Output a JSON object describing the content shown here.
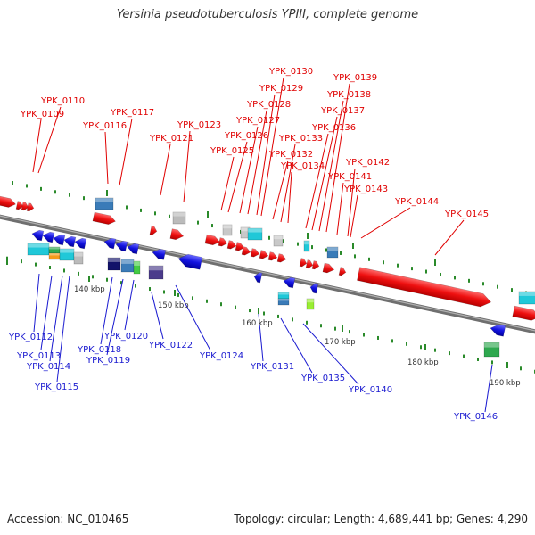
{
  "title": "Yersinia pseudotuberculosis YPIII, complete genome",
  "footer": {
    "accession": "Accession: NC_010465",
    "topology": "Topology: circular; Length: 4,689,441 bp; Genes: 4,290"
  },
  "colors": {
    "forward_genes": "#e00000",
    "reverse_genes": "#1a1ad0",
    "backbone": "#7a7a7a",
    "tick": "#2a8a2a"
  },
  "kbp_markers": [
    "140 kbp",
    "150 kbp",
    "160 kbp",
    "170 kbp",
    "180 kbp",
    "190 kbp"
  ],
  "forward_labels": [
    "YPK_0109",
    "YPK_0110",
    "YPK_0116",
    "YPK_0117",
    "YPK_0121",
    "YPK_0123",
    "YPK_0125",
    "YPK_0126",
    "YPK_0127",
    "YPK_0128",
    "YPK_0129",
    "YPK_0130",
    "YPK_0132",
    "YPK_0133",
    "YPK_0134",
    "YPK_0136",
    "YPK_0137",
    "YPK_0138",
    "YPK_0139",
    "YPK_0141",
    "YPK_0142",
    "YPK_0143",
    "YPK_0144",
    "YPK_0145"
  ],
  "reverse_labels": [
    "YPK_0112",
    "YPK_0113",
    "YPK_0114",
    "YPK_0115",
    "YPK_0118",
    "YPK_0119",
    "YPK_0120",
    "YPK_0122",
    "YPK_0124",
    "YPK_0131",
    "YPK_0135",
    "YPK_0140",
    "YPK_0146"
  ]
}
